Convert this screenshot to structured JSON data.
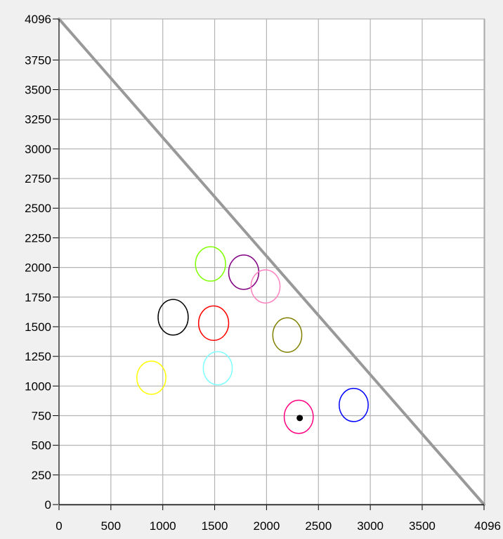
{
  "chart_data": {
    "type": "scatter",
    "title": "",
    "xlabel": "",
    "ylabel": "",
    "xlim": [
      0,
      4096
    ],
    "ylim": [
      0,
      4096
    ],
    "grid": true,
    "x_ticks": [
      {
        "value": 0,
        "label": "0"
      },
      {
        "value": 500,
        "label": "500"
      },
      {
        "value": 1000,
        "label": "1000"
      },
      {
        "value": 1500,
        "label": "1500"
      },
      {
        "value": 2000,
        "label": "2000"
      },
      {
        "value": 2500,
        "label": "2500"
      },
      {
        "value": 3000,
        "label": "3000"
      },
      {
        "value": 3500,
        "label": "3500"
      },
      {
        "value": 4096,
        "label": "4096"
      }
    ],
    "y_ticks": [
      {
        "value": 0,
        "label": "0"
      },
      {
        "value": 250,
        "label": "250"
      },
      {
        "value": 500,
        "label": "500"
      },
      {
        "value": 750,
        "label": "750"
      },
      {
        "value": 1000,
        "label": "1000"
      },
      {
        "value": 1250,
        "label": "1250"
      },
      {
        "value": 1500,
        "label": "1500"
      },
      {
        "value": 1750,
        "label": "1750"
      },
      {
        "value": 2000,
        "label": "2000"
      },
      {
        "value": 2250,
        "label": "2250"
      },
      {
        "value": 2500,
        "label": "2500"
      },
      {
        "value": 2750,
        "label": "2750"
      },
      {
        "value": 3000,
        "label": "3000"
      },
      {
        "value": 3250,
        "label": "3250"
      },
      {
        "value": 3500,
        "label": "3500"
      },
      {
        "value": 3750,
        "label": "3750"
      },
      {
        "value": 4096,
        "label": "4096"
      }
    ],
    "boundary_line": {
      "x": [
        0,
        4096
      ],
      "y": [
        4096,
        0
      ],
      "color": "#999999"
    },
    "ellipses": [
      {
        "x": 1460,
        "y": 2030,
        "rx": 145,
        "ry": 145,
        "color": "#80ff00"
      },
      {
        "x": 1780,
        "y": 1960,
        "rx": 145,
        "ry": 145,
        "color": "#800080"
      },
      {
        "x": 1990,
        "y": 1840,
        "rx": 140,
        "ry": 140,
        "color": "#ff80c0"
      },
      {
        "x": 1100,
        "y": 1580,
        "rx": 145,
        "ry": 150,
        "color": "#000000"
      },
      {
        "x": 1490,
        "y": 1530,
        "rx": 145,
        "ry": 145,
        "color": "#ff0000"
      },
      {
        "x": 2200,
        "y": 1430,
        "rx": 140,
        "ry": 145,
        "color": "#808000"
      },
      {
        "x": 1530,
        "y": 1150,
        "rx": 140,
        "ry": 140,
        "color": "#80ffff"
      },
      {
        "x": 890,
        "y": 1070,
        "rx": 140,
        "ry": 140,
        "color": "#ffff00"
      },
      {
        "x": 2840,
        "y": 840,
        "rx": 140,
        "ry": 140,
        "color": "#0000ff"
      },
      {
        "x": 2310,
        "y": 740,
        "rx": 140,
        "ry": 140,
        "color": "#ff0080"
      }
    ],
    "point": {
      "x": 2320,
      "y": 730,
      "color": "#000000"
    }
  }
}
